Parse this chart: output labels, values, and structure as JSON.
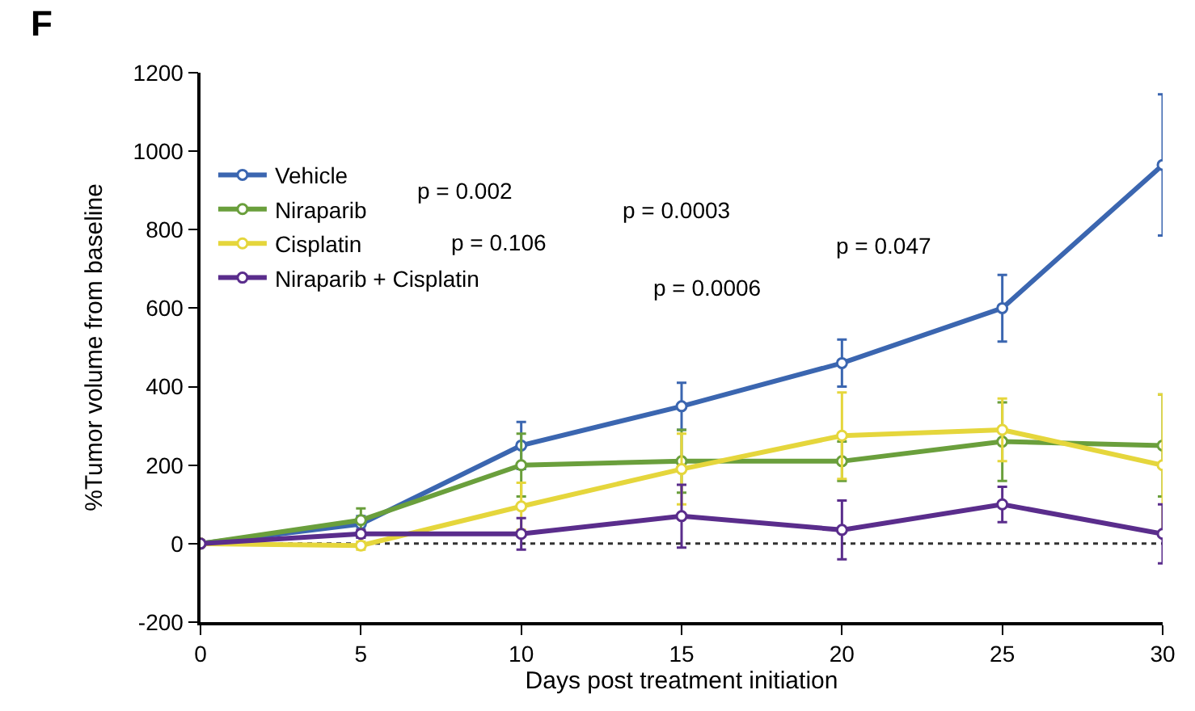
{
  "chart_data": {
    "type": "line",
    "xlabel": "Days post treatment initiation",
    "ylabel": "%Tumor volume from baseline",
    "x": [
      0,
      5,
      10,
      15,
      20,
      25,
      30
    ],
    "series": [
      {
        "name": "Vehicle",
        "color": "#3b66b0",
        "values": [
          0,
          50,
          250,
          350,
          460,
          600,
          965
        ],
        "errors": [
          null,
          20,
          60,
          60,
          60,
          85,
          180
        ]
      },
      {
        "name": "Niraparib",
        "color": "#6a9f3c",
        "values": [
          0,
          60,
          200,
          210,
          210,
          260,
          250
        ],
        "errors": [
          null,
          30,
          80,
          80,
          50,
          100,
          130
        ]
      },
      {
        "name": "Cisplatin",
        "color": "#e5d63c",
        "values": [
          0,
          -5,
          95,
          190,
          275,
          290,
          200
        ],
        "errors": [
          null,
          10,
          60,
          90,
          110,
          80,
          180
        ]
      },
      {
        "name": "Niraparib + Cisplatin",
        "color": "#5a2d8c",
        "values": [
          0,
          25,
          25,
          70,
          35,
          100,
          25
        ],
        "errors": [
          null,
          10,
          40,
          80,
          75,
          45,
          75
        ]
      }
    ],
    "xlim": [
      0,
      30
    ],
    "xticks": [
      0,
      5,
      10,
      15,
      20,
      25,
      30
    ],
    "ylim": [
      -200,
      1200
    ],
    "yticks": [
      -200,
      0,
      200,
      400,
      600,
      800,
      1000,
      1200
    ],
    "ref_lines": [
      {
        "axis": "y",
        "value": 0,
        "color": "#333333",
        "line_style": "dotted"
      }
    ],
    "annotations": [
      "F",
      "p = 0.002",
      "p = 0.106",
      "p = 0.0003",
      "p = 0.0006",
      "p = 0.047"
    ],
    "legend": "top left",
    "marker": "circle",
    "line_style": "solid",
    "grid": false
  }
}
